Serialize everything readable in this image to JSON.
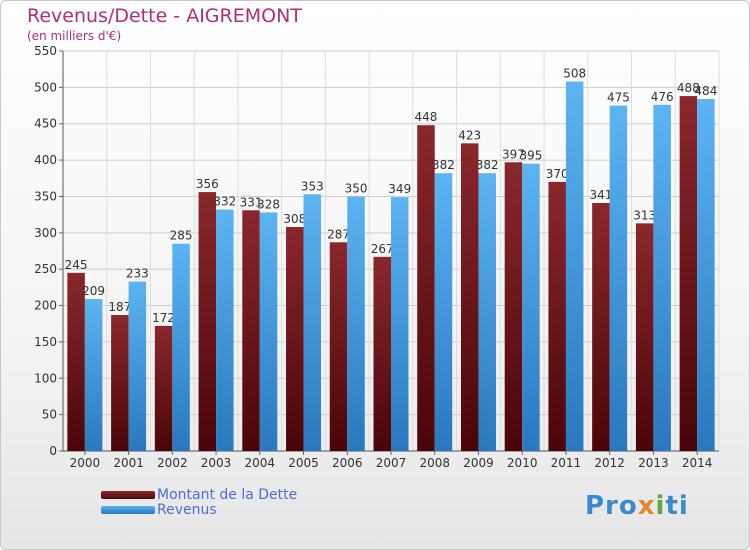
{
  "chart_data": {
    "type": "bar",
    "title": "Revenus/Dette - AIGREMONT",
    "subtitle": "(en milliers d'€)",
    "categories": [
      "2000",
      "2001",
      "2002",
      "2003",
      "2004",
      "2005",
      "2006",
      "2007",
      "2008",
      "2009",
      "2010",
      "2011",
      "2012",
      "2013",
      "2014"
    ],
    "series": [
      {
        "name": "Montant de la Dette",
        "color": "#7a1e22",
        "values": [
          245,
          187,
          172,
          356,
          331,
          308,
          287,
          267,
          448,
          423,
          397,
          370,
          341,
          313,
          488
        ]
      },
      {
        "name": "Revenus",
        "color": "#4aa2e6",
        "values": [
          209,
          233,
          285,
          332,
          328,
          353,
          350,
          349,
          382,
          382,
          395,
          508,
          475,
          476,
          484
        ]
      }
    ],
    "ylim": [
      0,
      550
    ],
    "yticks": [
      0,
      50,
      100,
      150,
      200,
      250,
      300,
      350,
      400,
      450,
      500,
      550
    ],
    "grid": true,
    "legend": "bottom-left"
  },
  "logo": {
    "text": "Proxiti",
    "parts": [
      "Pro",
      "x",
      "i",
      "ti"
    ]
  }
}
